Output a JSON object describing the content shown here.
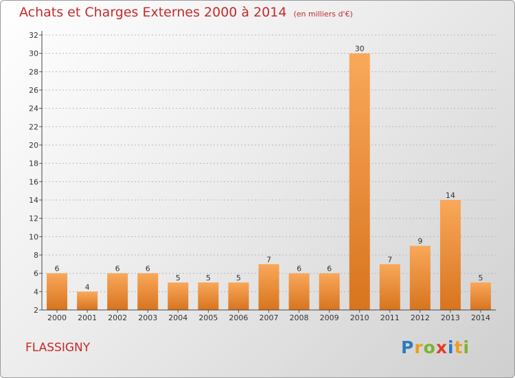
{
  "title": {
    "main": "Achats et Charges Externes 2000 à 2014",
    "unit": "(en milliers d'€)"
  },
  "location": "FLASSIGNY",
  "logo": {
    "letters": [
      "P",
      "r",
      "o",
      "x",
      "i",
      "t",
      "i"
    ],
    "colors": [
      "#2b7ac1",
      "#e8a020",
      "#7bb330",
      "#e33b2b",
      "#2b7ac1",
      "#e8a020",
      "#7bb330"
    ]
  },
  "colors": {
    "bar_light": "#f9a85a",
    "bar_dark": "#d8741e",
    "title": "#c42a2a",
    "grid": "#b8b8b8"
  },
  "chart_data": {
    "type": "bar",
    "title": "Achats et Charges Externes 2000 à 2014",
    "subtitle": "(en milliers d'€)",
    "categories": [
      "2000",
      "2001",
      "2002",
      "2003",
      "2004",
      "2005",
      "2006",
      "2007",
      "2008",
      "2009",
      "2010",
      "2011",
      "2012",
      "2013",
      "2014"
    ],
    "values": [
      6,
      4,
      6,
      6,
      5,
      5,
      5,
      7,
      6,
      6,
      30,
      7,
      9,
      14,
      5
    ],
    "data_labels": [
      "6",
      "4",
      "6",
      "6",
      "5",
      "5",
      "5",
      "7",
      "6",
      "6",
      "30",
      "7",
      "9",
      "14",
      "5"
    ],
    "yticks": [
      "2",
      "4",
      "6",
      "8",
      "10",
      "12",
      "14",
      "16",
      "18",
      "20",
      "22",
      "24",
      "26",
      "28",
      "30",
      "32"
    ],
    "ylim": [
      2,
      32
    ],
    "xlabel": "",
    "ylabel": "",
    "grid": true,
    "legend": "none"
  }
}
